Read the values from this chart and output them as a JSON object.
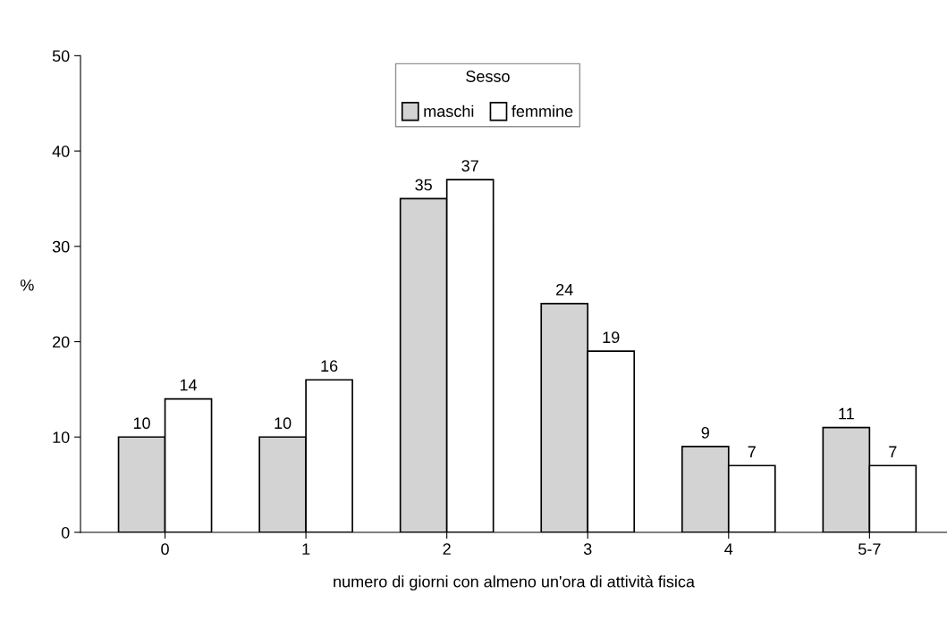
{
  "chart_data": {
    "type": "bar",
    "xlabel": "numero di giorni con almeno un'ora di attività fisica",
    "ylabel": "%",
    "legend_title": "Sesso",
    "categories": [
      "0",
      "1",
      "2",
      "3",
      "4",
      "5-7"
    ],
    "series": [
      {
        "name": "maschi",
        "color": "#d3d3d3",
        "values": [
          10,
          10,
          35,
          24,
          9,
          11
        ]
      },
      {
        "name": "femmine",
        "color": "#ffffff",
        "values": [
          14,
          16,
          37,
          19,
          7,
          7
        ]
      }
    ],
    "ylim": [
      0,
      50
    ],
    "yticks": [
      0,
      10,
      20,
      30,
      40,
      50
    ],
    "grid": false,
    "legend": "top",
    "data_labels": true
  }
}
